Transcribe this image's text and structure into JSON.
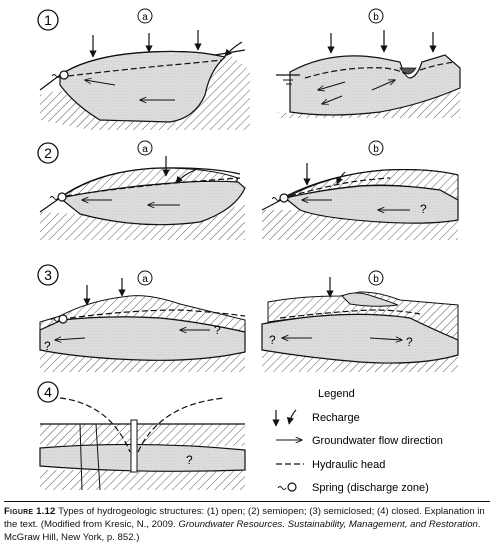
{
  "panels": [
    {
      "number": "1",
      "sub_a": "a",
      "sub_b": "b"
    },
    {
      "number": "2",
      "sub_a": "a",
      "sub_b": "b"
    },
    {
      "number": "3",
      "sub_a": "a",
      "sub_b": "b"
    },
    {
      "number": "4"
    }
  ],
  "unknown_mark": "?",
  "legend": {
    "title": "Legend",
    "items": [
      {
        "icon": "recharge-arrow-icon",
        "label": "Recharge"
      },
      {
        "icon": "flow-arrow-icon",
        "label": "Groundwater flow direction"
      },
      {
        "icon": "dashed-line-icon",
        "label": "Hydraulic head"
      },
      {
        "icon": "spring-icon",
        "label": "Spring (discharge zone)"
      }
    ]
  },
  "caption": {
    "label": "Figure 1.12",
    "text1": " Types of hydrogeologic structures: (1) open; (2) semiopen; (3) semiclosed; (4) closed. Explanation in the text. (Modified from Kresic, N., 2009. ",
    "title_italic": "Groundwater Resources. Sustainability, Management, and Restoration",
    "text2": ". McGraw Hill, New York, p. 852.)"
  }
}
